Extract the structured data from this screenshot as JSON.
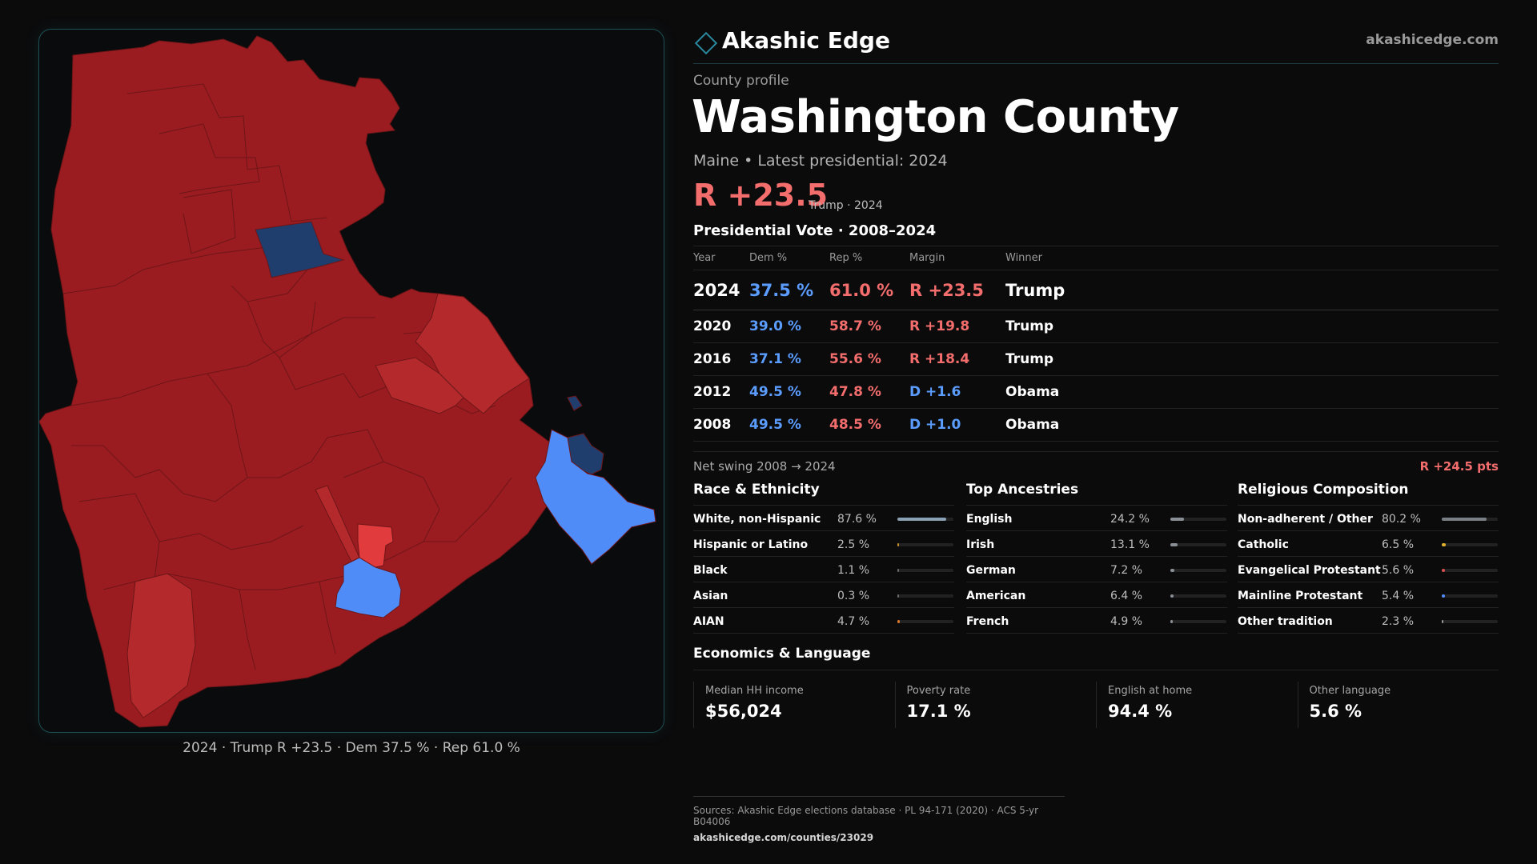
{
  "brand": {
    "name": "Akashic Edge",
    "url": "akashicedge.com"
  },
  "profile": {
    "eyebrow": "County profile",
    "title": "Washington County",
    "subline": "Maine • Latest presidential: 2024",
    "margin": "R +23.5",
    "margin_note": "Trump · 2024"
  },
  "map": {
    "caption": "2024 · Trump R +23.5 · Dem 37.5 % · Rep 61.0 %",
    "colors": {
      "strong_rep": "#9b1c20",
      "lean_rep": "#b42a2c",
      "light_rep": "#e23b3e",
      "strong_dem": "#1f3e6d",
      "light_dem": "#4f8cf7",
      "borders": "#6d1518"
    }
  },
  "vote": {
    "title": "Presidential Vote · 2008–2024",
    "headers": [
      "Year",
      "Dem %",
      "Rep %",
      "Margin",
      "Winner"
    ],
    "rows": [
      {
        "year": "2024",
        "dem": "37.5 %",
        "rep": "61.0 %",
        "margin": "R +23.5",
        "party": "R",
        "winner": "Trump"
      },
      {
        "year": "2020",
        "dem": "39.0 %",
        "rep": "58.7 %",
        "margin": "R +19.8",
        "party": "R",
        "winner": "Trump"
      },
      {
        "year": "2016",
        "dem": "37.1 %",
        "rep": "55.6 %",
        "margin": "R +18.4",
        "party": "R",
        "winner": "Trump"
      },
      {
        "year": "2012",
        "dem": "49.5 %",
        "rep": "47.8 %",
        "margin": "D +1.6",
        "party": "D",
        "winner": "Obama"
      },
      {
        "year": "2008",
        "dem": "49.5 %",
        "rep": "48.5 %",
        "margin": "D +1.0",
        "party": "D",
        "winner": "Obama"
      }
    ],
    "swing_label": "Net swing 2008 → 2024",
    "swing_value": "R +24.5 pts"
  },
  "colors": {
    "dem": "#5b9cff",
    "rep": "#f36d6d"
  },
  "race": {
    "title": "Race & Ethnicity",
    "rows": [
      {
        "label": "White, non-Hispanic",
        "pct": "87.6 %",
        "value": 87.6,
        "color": "#8aa0b4"
      },
      {
        "label": "Hispanic or Latino",
        "pct": "2.5 %",
        "value": 2.5,
        "color": "#c8902a"
      },
      {
        "label": "Black",
        "pct": "1.1 %",
        "value": 1.1,
        "color": "#6b6b6b"
      },
      {
        "label": "Asian",
        "pct": "0.3 %",
        "value": 0.3,
        "color": "#6b6b6b"
      },
      {
        "label": "AIAN",
        "pct": "4.7 %",
        "value": 4.7,
        "color": "#d9772a"
      }
    ]
  },
  "ancestry": {
    "title": "Top Ancestries",
    "rows": [
      {
        "label": "English",
        "pct": "24.2 %",
        "value": 24.2,
        "color": "#8a8f96"
      },
      {
        "label": "Irish",
        "pct": "13.1 %",
        "value": 13.1,
        "color": "#8a8f96"
      },
      {
        "label": "German",
        "pct": "7.2 %",
        "value": 7.2,
        "color": "#8a8f96"
      },
      {
        "label": "American",
        "pct": "6.4 %",
        "value": 6.4,
        "color": "#8a8f96"
      },
      {
        "label": "French",
        "pct": "4.9 %",
        "value": 4.9,
        "color": "#8a8f96"
      }
    ]
  },
  "religion": {
    "title": "Religious Composition",
    "rows": [
      {
        "label": "Non-adherent / Other",
        "pct": "80.2 %",
        "value": 80.2,
        "color": "#7a7f86"
      },
      {
        "label": "Catholic",
        "pct": "6.5 %",
        "value": 6.5,
        "color": "#e0b030"
      },
      {
        "label": "Evangelical Protestant",
        "pct": "5.6 %",
        "value": 5.6,
        "color": "#d85050"
      },
      {
        "label": "Mainline Protestant",
        "pct": "5.4 %",
        "value": 5.4,
        "color": "#4f8cf7"
      },
      {
        "label": "Other tradition",
        "pct": "2.3 %",
        "value": 2.3,
        "color": "#9a9a9a"
      }
    ]
  },
  "economics": {
    "title": "Economics & Language",
    "cells": [
      {
        "label": "Median HH income",
        "value": "$56,024"
      },
      {
        "label": "Poverty rate",
        "value": "17.1 %"
      },
      {
        "label": "English at home",
        "value": "94.4 %"
      },
      {
        "label": "Other language",
        "value": "5.6 %"
      }
    ]
  },
  "sources": {
    "text": "Sources: Akashic Edge elections database · PL 94-171 (2020) · ACS 5-yr B04006",
    "url": "akashicedge.com/counties/23029"
  }
}
